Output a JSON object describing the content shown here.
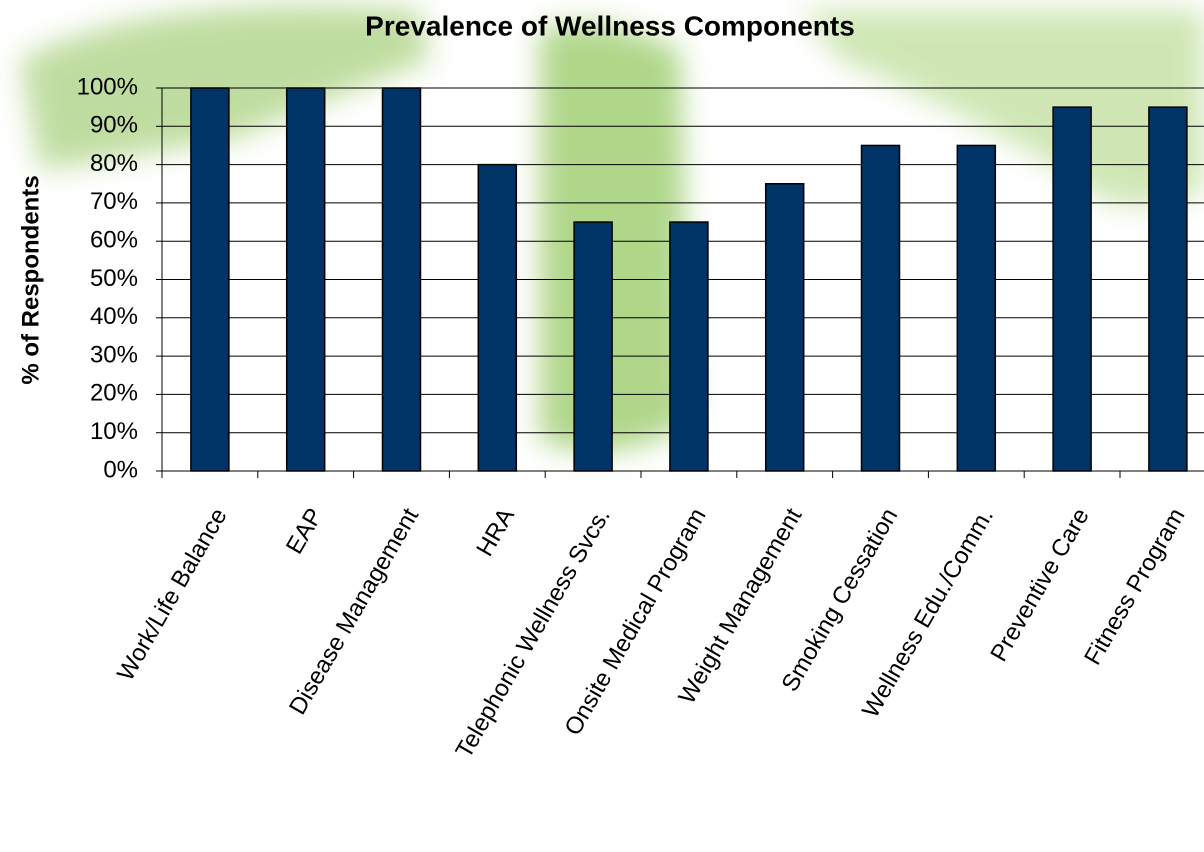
{
  "chart_data": {
    "type": "bar",
    "title": "Prevalence of Wellness Components",
    "y_label": "% of Respondents",
    "categories": [
      "Work/Life Balance",
      "EAP",
      "Disease Management",
      "HRA",
      "Telephonic Wellness Svcs.",
      "Onsite Medical Program",
      "Weight Management",
      "Smoking Cessation",
      "Wellness Edu./Comm.",
      "Preventive Care",
      "Fitness Program"
    ],
    "values": [
      100,
      100,
      100,
      80,
      65,
      65,
      75,
      85,
      85,
      95,
      95
    ],
    "color": "#003366",
    "ylim": [
      0,
      100
    ],
    "yticks": [
      {
        "value": 0,
        "label": "0%"
      },
      {
        "value": 10,
        "label": "10%"
      },
      {
        "value": 20,
        "label": "20%"
      },
      {
        "value": 30,
        "label": "30%"
      },
      {
        "value": 40,
        "label": "40%"
      },
      {
        "value": 50,
        "label": "50%"
      },
      {
        "value": 60,
        "label": "60%"
      },
      {
        "value": 70,
        "label": "70%"
      },
      {
        "value": 80,
        "label": "80%"
      },
      {
        "value": 90,
        "label": "90%"
      },
      {
        "value": 100,
        "label": "100%"
      }
    ],
    "grid": true
  }
}
